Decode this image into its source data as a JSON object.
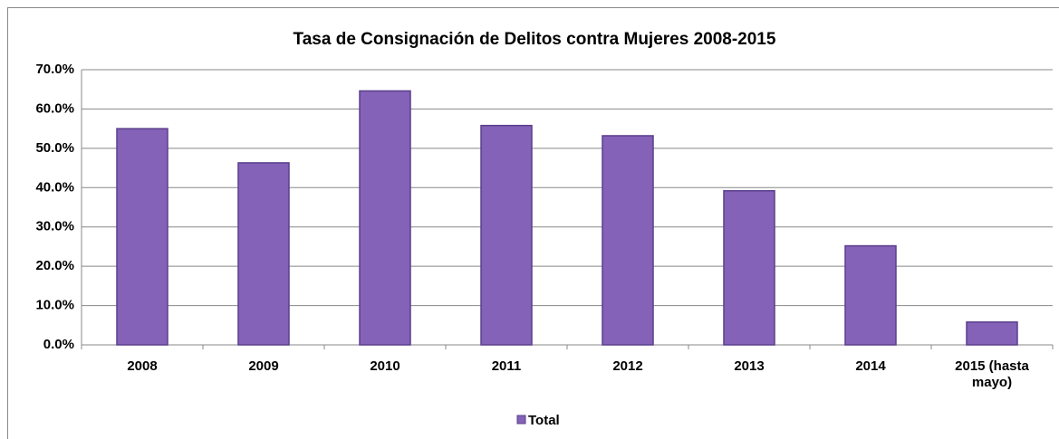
{
  "chart_data": {
    "type": "bar",
    "title": "Tasa de Consignación de Delitos contra Mujeres 2008-2015",
    "categories": [
      "2008",
      "2009",
      "2010",
      "2011",
      "2012",
      "2013",
      "2014",
      "2015 (hasta mayo)"
    ],
    "series": [
      {
        "name": "Total",
        "color": "#8462b8",
        "values": [
          55.0,
          46.3,
          64.6,
          55.8,
          53.2,
          39.2,
          25.2,
          5.8
        ]
      }
    ],
    "ylim": [
      0,
      70
    ],
    "yticks": [
      {
        "value": 0,
        "label": "0.0%"
      },
      {
        "value": 10,
        "label": "10.0%"
      },
      {
        "value": 20,
        "label": "20.0%"
      },
      {
        "value": 30,
        "label": "30.0%"
      },
      {
        "value": 40,
        "label": "40.0%"
      },
      {
        "value": 50,
        "label": "50.0%"
      },
      {
        "value": 60,
        "label": "60.0%"
      },
      {
        "value": 70,
        "label": "70.0%"
      }
    ],
    "grid": true,
    "legend": "bottom"
  }
}
